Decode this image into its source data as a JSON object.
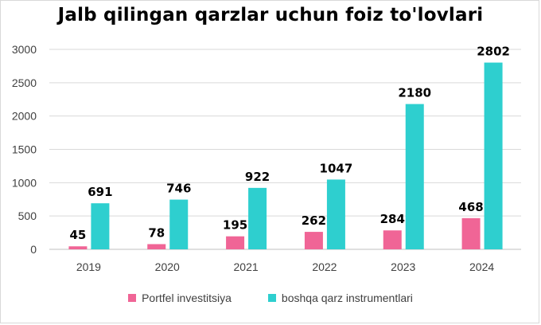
{
  "chart_data": {
    "type": "bar",
    "title": "Jalb qilingan  qarzlar uchun foiz to'lovlari",
    "categories": [
      "2019",
      "2020",
      "2021",
      "2022",
      "2023",
      "2024"
    ],
    "series": [
      {
        "name": "Portfel investitsiya",
        "color": "#f06596",
        "values": [
          45,
          78,
          195,
          262,
          284,
          468
        ]
      },
      {
        "name": "boshqa qarz instrumentlari",
        "color": "#2ecfcf",
        "values": [
          691,
          746,
          922,
          1047,
          2180,
          2802
        ]
      }
    ],
    "ylim": [
      0,
      3000
    ],
    "yticks": [
      0,
      500,
      1000,
      1500,
      2000,
      2500,
      3000
    ],
    "grid": true,
    "legend": "bottom",
    "data_labels": true
  }
}
